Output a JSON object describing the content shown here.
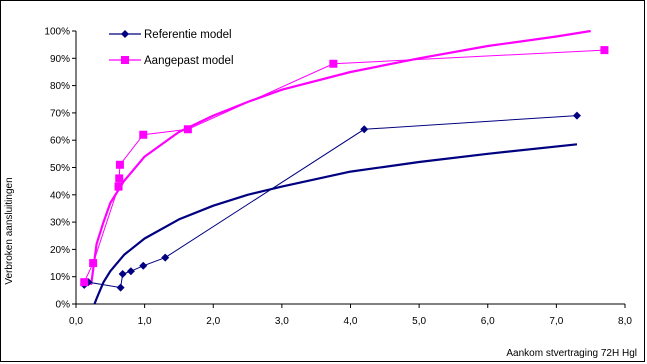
{
  "chart_data": {
    "type": "line",
    "xlabel": "Aankom stvertraging 72H Hgl",
    "ylabel": "Verbroken aansluitingen",
    "xlim": [
      0,
      8
    ],
    "ylim": [
      0,
      1
    ],
    "x_ticks": [
      "0,0",
      "1,0",
      "2,0",
      "3,0",
      "4,0",
      "5,0",
      "6,0",
      "7,0",
      "8,0"
    ],
    "y_ticks": [
      "0%",
      "10%",
      "20%",
      "30%",
      "40%",
      "50%",
      "60%",
      "70%",
      "80%",
      "90%",
      "100%"
    ],
    "grid": false,
    "legend_position": "top-left",
    "series": [
      {
        "name": "Referentie model",
        "color": "#000080",
        "marker": "diamond",
        "points": [
          [
            0.12,
            0.07
          ],
          [
            0.18,
            0.08
          ],
          [
            0.65,
            0.06
          ],
          [
            0.68,
            0.11
          ],
          [
            0.8,
            0.12
          ],
          [
            0.98,
            0.14
          ],
          [
            1.3,
            0.17
          ],
          [
            4.2,
            0.64
          ],
          [
            7.3,
            0.69
          ]
        ]
      },
      {
        "name": "Aangepast model",
        "color": "#FF00FF",
        "marker": "square",
        "points": [
          [
            0.12,
            0.08
          ],
          [
            0.25,
            0.15
          ],
          [
            0.62,
            0.43
          ],
          [
            0.63,
            0.46
          ],
          [
            0.64,
            0.51
          ],
          [
            0.98,
            0.62
          ],
          [
            1.63,
            0.64
          ],
          [
            3.75,
            0.88
          ],
          [
            7.7,
            0.93
          ]
        ]
      }
    ],
    "trendlines": [
      {
        "color": "#000080",
        "type": "logarithmic",
        "points": [
          [
            0.27,
            0.0
          ],
          [
            0.3,
            0.02
          ],
          [
            0.4,
            0.08
          ],
          [
            0.5,
            0.12
          ],
          [
            0.7,
            0.18
          ],
          [
            1.0,
            0.24
          ],
          [
            1.5,
            0.31
          ],
          [
            2.0,
            0.36
          ],
          [
            2.5,
            0.4
          ],
          [
            3.0,
            0.43
          ],
          [
            4.0,
            0.485
          ],
          [
            5.0,
            0.52
          ],
          [
            6.0,
            0.55
          ],
          [
            7.3,
            0.585
          ]
        ]
      },
      {
        "color": "#FF00FF",
        "type": "logarithmic",
        "points": [
          [
            0.22,
            0.07
          ],
          [
            0.3,
            0.22
          ],
          [
            0.4,
            0.3
          ],
          [
            0.5,
            0.37
          ],
          [
            0.7,
            0.45
          ],
          [
            1.0,
            0.54
          ],
          [
            1.5,
            0.63
          ],
          [
            2.0,
            0.69
          ],
          [
            2.5,
            0.74
          ],
          [
            3.0,
            0.785
          ],
          [
            4.0,
            0.85
          ],
          [
            5.0,
            0.9
          ],
          [
            6.0,
            0.945
          ],
          [
            7.0,
            0.98
          ],
          [
            7.5,
            1.0
          ]
        ]
      }
    ]
  }
}
